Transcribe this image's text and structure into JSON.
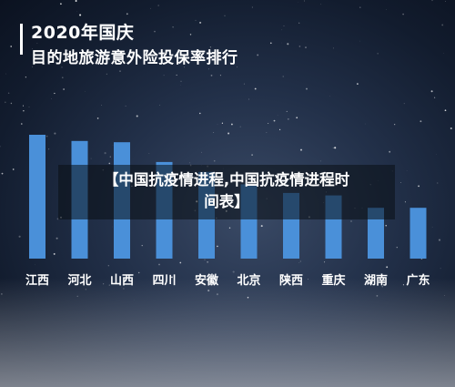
{
  "header": {
    "title_line1": "2020年国庆",
    "title_line2": "目的地旅游意外险投保率排行"
  },
  "overlay": {
    "line1": "【中国抗疫情进程,中国抗疫情进程时",
    "line2": "间表】"
  },
  "colors": {
    "bar": "#4a90d9",
    "label": "#ffffff"
  },
  "chart_data": {
    "type": "bar",
    "categories": [
      "江西",
      "河北",
      "山西",
      "四川",
      "安徽",
      "北京",
      "陕西",
      "重庆",
      "湖南",
      "广东"
    ],
    "values": [
      100,
      95,
      94,
      78,
      70,
      60,
      53,
      51,
      41,
      41
    ],
    "title": "2020年国庆目的地旅游意外险投保率排行",
    "xlabel": "",
    "ylabel": "",
    "ylim": [
      0,
      100
    ],
    "grid": false,
    "legend": "none"
  }
}
